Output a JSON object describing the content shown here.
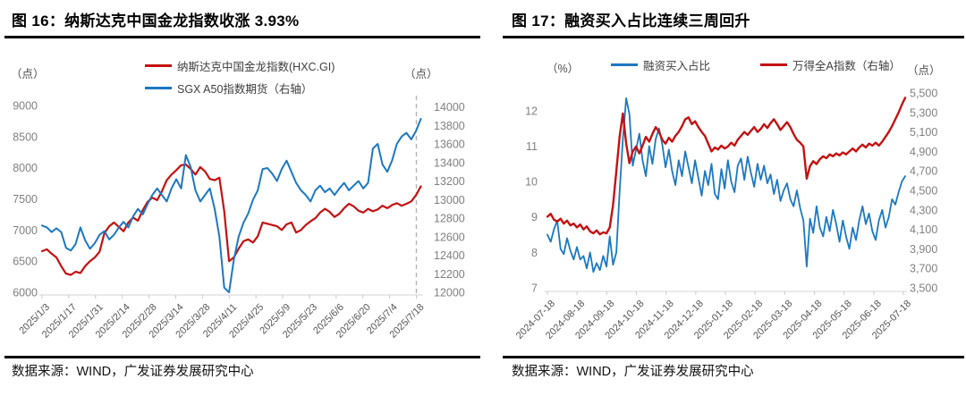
{
  "page": {
    "background": "#ffffff"
  },
  "figure16": {
    "title": "图 16：纳斯达克中国金龙指数收涨 3.93%",
    "source": "数据来源：WIND，广发证券发展研究中心"
  },
  "figure17": {
    "title": "图 17：融资买入占比连续三周回升",
    "source": "数据来源：WIND，广发证券发展研究中心"
  },
  "chart_data": [
    {
      "type": "line",
      "title": "图 16：纳斯达克中国金龙指数收涨 3.93%",
      "legend_position": "top",
      "grid": false,
      "left_axis": {
        "unit": "（点）",
        "range": [
          6000,
          9200
        ],
        "tick_labels": [
          "9000",
          "8500",
          "8000",
          "7500",
          "7000",
          "6500",
          "6000"
        ]
      },
      "right_axis": {
        "unit": "（点）",
        "range": [
          12000,
          14150
        ],
        "tick_labels": [
          "14000",
          "13800",
          "13600",
          "13400",
          "13200",
          "13000",
          "12800",
          "12600",
          "12400",
          "12200",
          "12000"
        ]
      },
      "x_axis": {
        "tick_labels": [
          "2025/1/3",
          "2025/1/17",
          "2025/1/31",
          "2025/2/14",
          "2025/2/28",
          "2025/3/14",
          "2025/3/28",
          "2025/4/11",
          "2025/4/25",
          "2025/5/9",
          "2025/5/23",
          "2025/6/6",
          "2025/6/20",
          "2025/7/4",
          "2025/7/18"
        ]
      },
      "dashed_vline_at": "2025/7/18",
      "series": [
        {
          "name": "纳斯达克中国金龙指数(HXC.GI)",
          "axis": "left",
          "color": "#c41111",
          "values": [
            6660,
            6690,
            6620,
            6560,
            6420,
            6300,
            6280,
            6330,
            6310,
            6420,
            6500,
            6560,
            6650,
            6950,
            7060,
            7120,
            7050,
            6980,
            7120,
            7200,
            7150,
            7320,
            7450,
            7520,
            7480,
            7620,
            7800,
            7890,
            7960,
            8040,
            8050,
            7980,
            7890,
            8010,
            7940,
            7820,
            7800,
            7840,
            7300,
            6500,
            6560,
            6700,
            6820,
            6850,
            6800,
            6900,
            7120,
            7100,
            7080,
            7060,
            7000,
            7090,
            7120,
            6960,
            7000,
            7080,
            7140,
            7190,
            7280,
            7340,
            7290,
            7210,
            7260,
            7350,
            7420,
            7380,
            7310,
            7280,
            7340,
            7300,
            7330,
            7390,
            7350,
            7400,
            7430,
            7390,
            7420,
            7460,
            7560,
            7700
          ]
        },
        {
          "name": "SGX A50指数期货（右轴）",
          "axis": "right",
          "color": "#1b78c2",
          "values": [
            12720,
            12700,
            12650,
            12690,
            12650,
            12480,
            12450,
            12520,
            12700,
            12560,
            12470,
            12530,
            12620,
            12660,
            12570,
            12620,
            12700,
            12760,
            12700,
            12820,
            12900,
            12840,
            12950,
            13050,
            13120,
            13050,
            12980,
            13120,
            13220,
            13120,
            13480,
            13350,
            13100,
            12980,
            13050,
            13120,
            12900,
            12600,
            12050,
            12000,
            12350,
            12600,
            12750,
            12850,
            13000,
            13100,
            13330,
            13340,
            13280,
            13200,
            13330,
            13420,
            13300,
            13180,
            13100,
            13050,
            12980,
            13100,
            13150,
            13080,
            13120,
            13050,
            13120,
            13180,
            13100,
            13150,
            13200,
            13120,
            13180,
            13550,
            13600,
            13380,
            13300,
            13420,
            13600,
            13680,
            13720,
            13650,
            13740,
            13870
          ]
        }
      ]
    },
    {
      "type": "line",
      "title": "图 17：融资买入占比连续三周回升",
      "legend_position": "top",
      "grid": false,
      "left_axis": {
        "unit": "（%）",
        "range": [
          7,
          12.5
        ],
        "tick_labels": [
          "12",
          "11",
          "10",
          "9",
          "8",
          "7"
        ]
      },
      "right_axis": {
        "unit": "（点）",
        "range": [
          3500,
          5500
        ],
        "tick_labels": [
          "5,500",
          "5,300",
          "5,100",
          "4,900",
          "4,700",
          "4,500",
          "4,300",
          "4,100",
          "3,900",
          "3,700",
          "3,500"
        ]
      },
      "x_axis": {
        "tick_labels": [
          "2024-07-18",
          "2024-08-18",
          "2024-09-18",
          "2024-10-18",
          "2024-11-18",
          "2024-12-18",
          "2025-01-18",
          "2025-02-18",
          "2025-03-18",
          "2025-04-18",
          "2025-05-18",
          "2025-06-18",
          "2025-07-18"
        ]
      },
      "series": [
        {
          "name": "融资买入占比",
          "axis": "left",
          "color": "#1b78c2",
          "values": [
            8.5,
            8.3,
            8.65,
            8.9,
            8.1,
            7.95,
            8.4,
            8.05,
            7.8,
            8.15,
            7.8,
            7.9,
            7.55,
            8.0,
            7.45,
            7.7,
            7.5,
            7.9,
            7.6,
            8.45,
            7.65,
            8.0,
            9.7,
            11.2,
            12.35,
            11.9,
            10.45,
            10.9,
            11.35,
            10.6,
            10.15,
            11.0,
            10.5,
            11.2,
            11.5,
            11.05,
            10.4,
            10.9,
            10.3,
            9.9,
            10.6,
            10.15,
            10.85,
            10.4,
            9.95,
            10.6,
            10.1,
            9.6,
            10.3,
            9.9,
            10.5,
            9.65,
            9.5,
            10.35,
            9.8,
            10.6,
            10.0,
            9.7,
            10.45,
            10.65,
            10.05,
            10.7,
            10.25,
            9.85,
            10.5,
            10.05,
            10.45,
            9.95,
            10.2,
            9.65,
            10.05,
            9.45,
            9.75,
            9.95,
            9.5,
            9.3,
            9.75,
            9.25,
            8.9,
            7.6,
            8.95,
            8.55,
            9.3,
            8.7,
            8.45,
            9.0,
            8.6,
            9.2,
            8.8,
            8.3,
            8.9,
            8.45,
            8.1,
            8.7,
            8.35,
            8.9,
            9.3,
            8.8,
            9.1,
            8.6,
            8.35,
            8.9,
            9.2,
            8.7,
            9.0,
            9.5,
            9.35,
            9.7,
            10.0,
            10.15
          ]
        },
        {
          "name": "万得全A指数（右轴）",
          "axis": "right",
          "color": "#c41111",
          "values": [
            4230,
            4260,
            4200,
            4180,
            4210,
            4160,
            4190,
            4140,
            4160,
            4120,
            4150,
            4100,
            4130,
            4080,
            4060,
            4090,
            4050,
            4070,
            4060,
            4120,
            4350,
            4700,
            5050,
            5290,
            4980,
            4780,
            4900,
            4950,
            4880,
            4960,
            5050,
            5000,
            5080,
            5150,
            5100,
            5020,
            4980,
            5040,
            5000,
            5060,
            5100,
            5160,
            5230,
            5250,
            5180,
            5210,
            5150,
            5100,
            5060,
            4980,
            4900,
            4940,
            4920,
            4960,
            4930,
            4950,
            4990,
            4960,
            5020,
            5060,
            5100,
            5070,
            5110,
            5150,
            5100,
            5130,
            5180,
            5140,
            5190,
            5230,
            5180,
            5120,
            5160,
            5200,
            5150,
            5080,
            5020,
            4990,
            4950,
            4620,
            4750,
            4800,
            4770,
            4820,
            4850,
            4830,
            4870,
            4850,
            4880,
            4860,
            4890,
            4870,
            4900,
            4930,
            4900,
            4940,
            4970,
            4940,
            4980,
            4960,
            4990,
            4960,
            5000,
            5050,
            5100,
            5160,
            5230,
            5300,
            5380,
            5450
          ]
        }
      ]
    }
  ]
}
